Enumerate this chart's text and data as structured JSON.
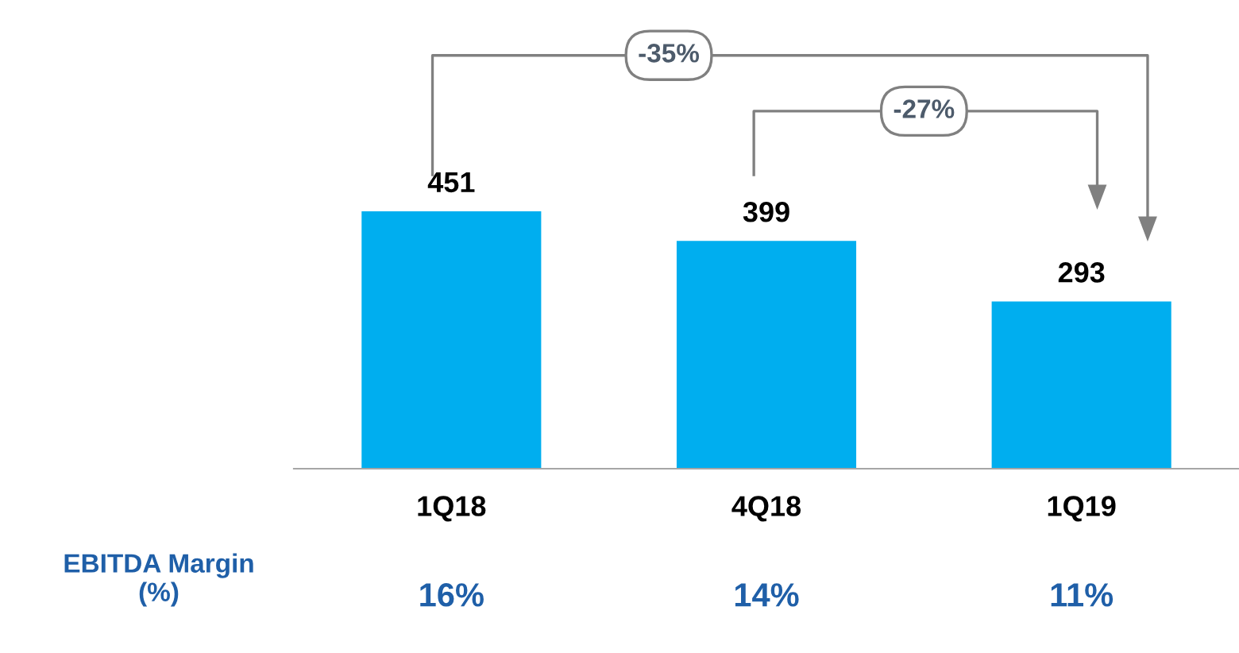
{
  "chart_data": {
    "type": "bar",
    "categories": [
      "1Q18",
      "4Q18",
      "1Q19"
    ],
    "values": [
      451,
      399,
      293
    ],
    "color": "#00aeef",
    "data_labels": true,
    "annotations": [
      "-35%",
      "-27%",
      "EBITDA Margin\n(%)",
      "16%",
      "14%",
      "11%"
    ]
  }
}
